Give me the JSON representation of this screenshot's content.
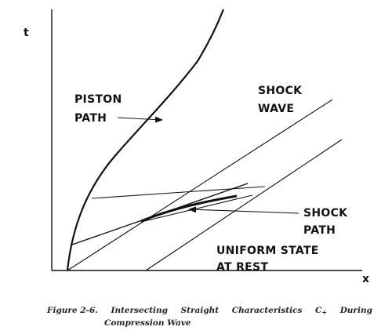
{
  "diagram": {
    "axis_t": "t",
    "axis_x": "x",
    "piston_label": [
      "PISTON",
      "PATH"
    ],
    "shock_wave_label": [
      "SHOCK",
      "WAVE"
    ],
    "shock_path_label": [
      "SHOCK",
      "PATH"
    ],
    "uniform_state_label": [
      "UNIFORM STATE",
      "AT REST"
    ]
  },
  "caption": {
    "fig": "Figure 2-6.",
    "w1": "Intersecting",
    "w2": "Straight",
    "w3": "Characteristics",
    "w4": "C",
    "w4sub": "+",
    "w5": "During",
    "line2": "Compression Wave"
  }
}
